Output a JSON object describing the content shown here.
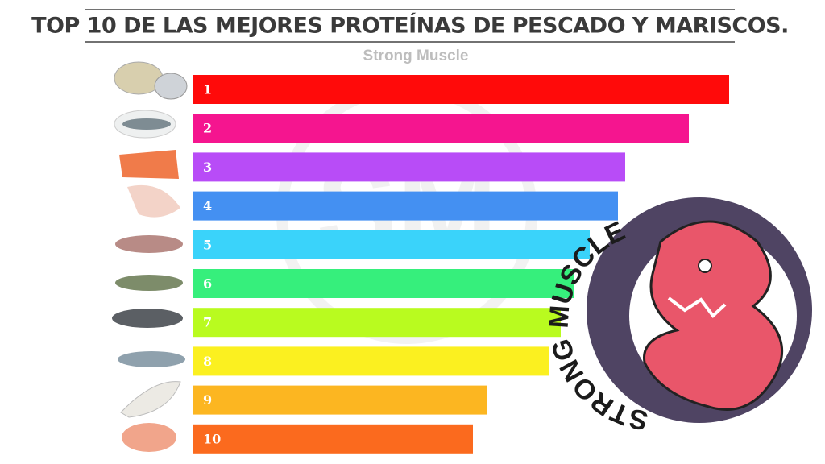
{
  "chart_data": {
    "type": "bar",
    "orientation": "horizontal",
    "title": "TOP 10 DE LAS MEJORES PROTEÍNAS DE PESCADO Y MARISCOS.",
    "subtitle": "Strong  Muscle",
    "watermark": "SM",
    "logo_text": "STRONG MUSCLE",
    "categories": [
      "1",
      "2",
      "3",
      "4",
      "5",
      "6",
      "7",
      "8",
      "9",
      "10"
    ],
    "values": [
      665,
      615,
      536,
      527,
      492,
      473,
      456,
      441,
      365,
      347
    ],
    "colors": [
      "#ff0a0a",
      "#f5158f",
      "#b84cf7",
      "#4490f2",
      "#3ad3fa",
      "#36ef7c",
      "#b9fb1f",
      "#fbf020",
      "#fcb621",
      "#fb6a1e"
    ],
    "xlim": [
      0,
      665
    ]
  }
}
